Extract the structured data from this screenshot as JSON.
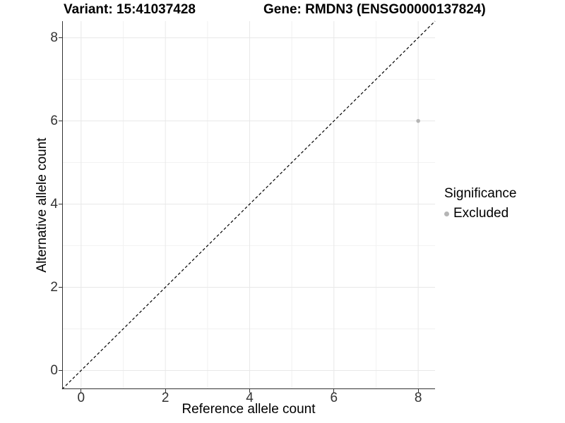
{
  "titles": {
    "variant": "Variant: 15:41037428",
    "gene": "Gene: RMDN3 (ENSG00000137824)"
  },
  "axes": {
    "x": {
      "label": "Reference allele count"
    },
    "y": {
      "label": "Alternative allele count"
    }
  },
  "legend": {
    "title": "Significance",
    "items": [
      {
        "label": "Excluded",
        "color": "#b5b5b5"
      }
    ]
  },
  "colors": {
    "axis_line": "#333333",
    "tick_text": "#333333",
    "grid_major": "#e8e8e8",
    "grid_minor": "#f2f2f2",
    "point": "#b5b5b5",
    "abline": "#000000"
  },
  "chart_data": {
    "type": "scatter",
    "title": "Variant: 15:41037428  Gene: RMDN3 (ENSG00000137824)",
    "xlabel": "Reference allele count",
    "ylabel": "Alternative allele count",
    "xlim": [
      -0.45,
      8.4
    ],
    "ylim": [
      -0.45,
      8.4
    ],
    "x_major_ticks": [
      0,
      2,
      4,
      6,
      8
    ],
    "y_major_ticks": [
      0,
      2,
      4,
      6,
      8
    ],
    "x_minor_ticks": [
      1,
      3,
      5,
      7
    ],
    "y_minor_ticks": [
      1,
      3,
      5,
      7
    ],
    "grid": true,
    "abline": {
      "slope": 1,
      "intercept": 0,
      "style": "dashed"
    },
    "series": [
      {
        "name": "Excluded",
        "points": [
          {
            "x": 8,
            "y": 6
          }
        ],
        "color": "#b5b5b5",
        "point_radius": 2.8
      }
    ],
    "legend_position": "right"
  }
}
